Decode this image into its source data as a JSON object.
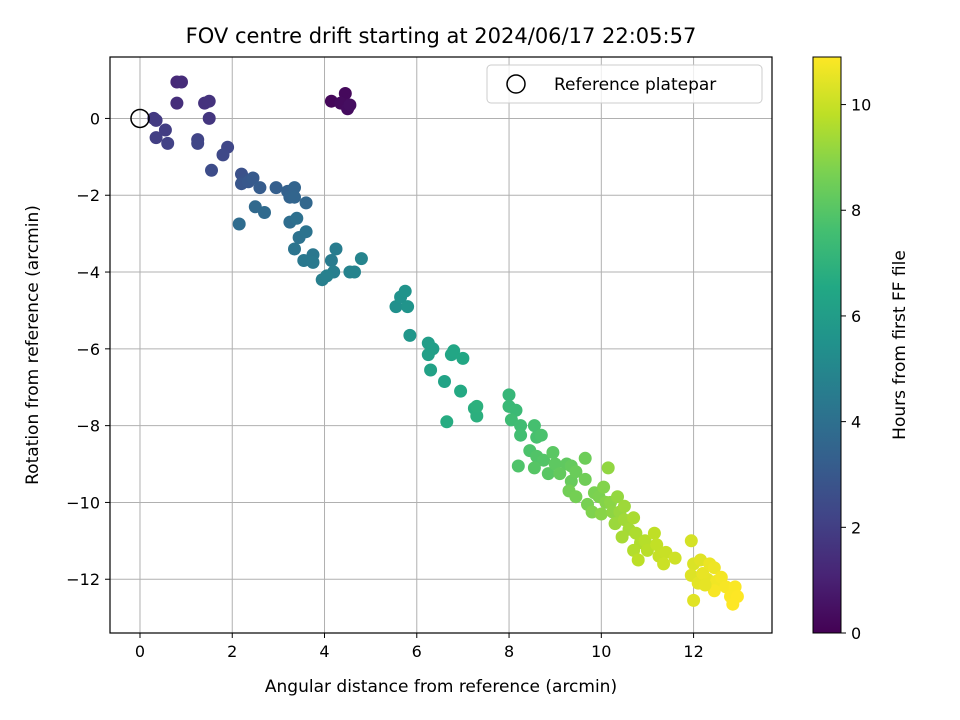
{
  "chart_data": {
    "type": "scatter",
    "title": "FOV centre drift starting at 2024/06/17 22:05:57",
    "xlabel": "Angular distance from reference (arcmin)",
    "ylabel": "Rotation from reference (arcmin)",
    "xlim": [
      -0.65,
      13.7
    ],
    "ylim": [
      -13.4,
      1.6
    ],
    "xticks": [
      0,
      2,
      4,
      6,
      8,
      10,
      12
    ],
    "yticks": [
      0,
      -2,
      -4,
      -6,
      -8,
      -10,
      -12
    ],
    "grid": true,
    "legend": {
      "placement": "top-right",
      "entries": [
        {
          "label": "Reference platepar",
          "marker": "open-circle"
        }
      ]
    },
    "reference_point": {
      "x": 0,
      "y": 0
    },
    "colorbar": {
      "label": "Hours from first FF file",
      "range": [
        0,
        10.9
      ],
      "ticks": [
        0,
        2,
        4,
        6,
        8,
        10
      ],
      "colormap": "viridis"
    },
    "columns": [
      "x",
      "y",
      "hours"
    ],
    "points": [
      [
        4.15,
        0.45,
        0.2
      ],
      [
        4.45,
        0.65,
        0.25
      ],
      [
        4.35,
        0.4,
        0.3
      ],
      [
        4.5,
        0.25,
        0.35
      ],
      [
        4.55,
        0.35,
        0.4
      ],
      [
        0.8,
        0.95,
        1.3
      ],
      [
        0.9,
        0.95,
        1.35
      ],
      [
        0.8,
        0.4,
        1.45
      ],
      [
        1.4,
        0.4,
        1.55
      ],
      [
        1.5,
        0.45,
        1.6
      ],
      [
        1.5,
        0.0,
        1.7
      ],
      [
        0.3,
        0.0,
        1.8
      ],
      [
        0.35,
        -0.05,
        1.85
      ],
      [
        0.55,
        -0.3,
        1.95
      ],
      [
        0.35,
        -0.5,
        2.0
      ],
      [
        0.6,
        -0.65,
        2.1
      ],
      [
        1.25,
        -0.55,
        2.2
      ],
      [
        1.25,
        -0.65,
        2.25
      ],
      [
        1.9,
        -0.75,
        2.3
      ],
      [
        1.8,
        -0.95,
        2.4
      ],
      [
        1.55,
        -1.35,
        2.5
      ],
      [
        2.2,
        -1.45,
        2.7
      ],
      [
        2.3,
        -1.6,
        2.8
      ],
      [
        2.2,
        -1.7,
        2.9
      ],
      [
        2.35,
        -1.65,
        3.0
      ],
      [
        2.45,
        -1.55,
        3.05
      ],
      [
        2.6,
        -1.8,
        3.15
      ],
      [
        2.95,
        -1.8,
        3.25
      ],
      [
        3.2,
        -1.9,
        3.35
      ],
      [
        3.25,
        -2.05,
        3.45
      ],
      [
        3.35,
        -1.8,
        3.5
      ],
      [
        3.35,
        -2.05,
        3.55
      ],
      [
        3.6,
        -2.2,
        3.6
      ],
      [
        2.5,
        -2.3,
        3.7
      ],
      [
        2.7,
        -2.45,
        3.75
      ],
      [
        2.15,
        -2.75,
        3.85
      ],
      [
        3.25,
        -2.7,
        3.9
      ],
      [
        3.4,
        -2.6,
        4.0
      ],
      [
        3.45,
        -3.1,
        4.1
      ],
      [
        3.6,
        -2.95,
        4.15
      ],
      [
        3.35,
        -3.4,
        4.2
      ],
      [
        3.75,
        -3.55,
        4.3
      ],
      [
        3.55,
        -3.7,
        4.35
      ],
      [
        3.75,
        -3.75,
        4.4
      ],
      [
        4.15,
        -3.7,
        4.5
      ],
      [
        4.25,
        -3.4,
        4.55
      ],
      [
        4.2,
        -4.0,
        4.6
      ],
      [
        3.95,
        -4.2,
        4.65
      ],
      [
        4.05,
        -4.1,
        4.7
      ],
      [
        4.55,
        -4.0,
        4.8
      ],
      [
        4.65,
        -4.0,
        4.85
      ],
      [
        4.8,
        -3.65,
        4.9
      ],
      [
        5.55,
        -4.9,
        5.4
      ],
      [
        5.65,
        -4.65,
        5.5
      ],
      [
        5.75,
        -4.5,
        5.55
      ],
      [
        5.8,
        -4.9,
        5.6
      ],
      [
        5.85,
        -5.65,
        5.7
      ],
      [
        6.25,
        -5.85,
        6.0
      ],
      [
        6.35,
        -6.0,
        6.05
      ],
      [
        6.25,
        -6.15,
        6.1
      ],
      [
        6.3,
        -6.55,
        6.2
      ],
      [
        6.6,
        -6.85,
        6.3
      ],
      [
        6.75,
        -6.15,
        6.4
      ],
      [
        6.8,
        -6.05,
        6.45
      ],
      [
        7.0,
        -6.25,
        6.5
      ],
      [
        6.95,
        -7.1,
        6.6
      ],
      [
        6.65,
        -7.9,
        6.7
      ],
      [
        7.25,
        -7.55,
        6.8
      ],
      [
        7.3,
        -7.75,
        6.85
      ],
      [
        7.3,
        -7.5,
        6.9
      ],
      [
        8.0,
        -7.2,
        7.2
      ],
      [
        8.0,
        -7.5,
        7.3
      ],
      [
        8.15,
        -7.6,
        7.35
      ],
      [
        8.05,
        -7.85,
        7.45
      ],
      [
        8.25,
        -8.0,
        7.5
      ],
      [
        8.25,
        -8.25,
        7.55
      ],
      [
        8.55,
        -8.0,
        7.65
      ],
      [
        8.6,
        -8.3,
        7.7
      ],
      [
        8.7,
        -8.25,
        7.75
      ],
      [
        8.45,
        -8.65,
        7.8
      ],
      [
        8.2,
        -9.05,
        7.85
      ],
      [
        8.6,
        -8.8,
        7.9
      ],
      [
        8.75,
        -8.9,
        7.95
      ],
      [
        8.55,
        -9.1,
        8.0
      ],
      [
        8.85,
        -9.25,
        8.05
      ],
      [
        8.95,
        -8.7,
        8.1
      ],
      [
        9.0,
        -9.0,
        8.15
      ],
      [
        9.25,
        -9.0,
        8.2
      ],
      [
        9.1,
        -9.25,
        8.25
      ],
      [
        9.35,
        -9.05,
        8.3
      ],
      [
        9.35,
        -9.45,
        8.35
      ],
      [
        9.45,
        -9.2,
        8.4
      ],
      [
        9.65,
        -8.85,
        8.45
      ],
      [
        9.65,
        -9.4,
        8.5
      ],
      [
        9.3,
        -9.7,
        8.55
      ],
      [
        9.45,
        -9.85,
        8.6
      ],
      [
        9.7,
        -10.05,
        8.65
      ],
      [
        9.85,
        -9.75,
        8.7
      ],
      [
        9.95,
        -9.85,
        8.75
      ],
      [
        9.8,
        -10.25,
        8.8
      ],
      [
        10.05,
        -9.6,
        8.85
      ],
      [
        10.1,
        -10.0,
        8.9
      ],
      [
        10.0,
        -10.3,
        8.95
      ],
      [
        10.2,
        -10.0,
        9.0
      ],
      [
        10.25,
        -10.25,
        9.05
      ],
      [
        10.15,
        -9.1,
        9.1
      ],
      [
        10.35,
        -9.85,
        9.15
      ],
      [
        10.4,
        -10.25,
        9.2
      ],
      [
        10.3,
        -10.55,
        9.25
      ],
      [
        10.5,
        -10.1,
        9.3
      ],
      [
        10.5,
        -10.45,
        9.35
      ],
      [
        10.6,
        -10.7,
        9.4
      ],
      [
        10.45,
        -10.9,
        9.45
      ],
      [
        10.7,
        -10.4,
        9.5
      ],
      [
        10.75,
        -10.8,
        9.55
      ],
      [
        10.85,
        -11.05,
        9.6
      ],
      [
        10.7,
        -11.25,
        9.65
      ],
      [
        10.95,
        -11.0,
        9.7
      ],
      [
        11.0,
        -11.25,
        9.75
      ],
      [
        10.8,
        -11.5,
        9.8
      ],
      [
        11.15,
        -10.8,
        9.85
      ],
      [
        11.2,
        -11.1,
        9.9
      ],
      [
        11.25,
        -11.4,
        9.95
      ],
      [
        11.4,
        -11.3,
        10.0
      ],
      [
        11.35,
        -11.6,
        10.05
      ],
      [
        11.6,
        -11.45,
        10.1
      ],
      [
        11.95,
        -11.0,
        10.2
      ],
      [
        12.0,
        -11.6,
        10.3
      ],
      [
        11.95,
        -11.9,
        10.35
      ],
      [
        12.15,
        -11.5,
        10.4
      ],
      [
        12.1,
        -12.1,
        10.45
      ],
      [
        12.3,
        -12.0,
        10.5
      ],
      [
        12.2,
        -11.85,
        10.55
      ],
      [
        12.35,
        -11.6,
        10.6
      ],
      [
        12.45,
        -11.7,
        10.65
      ],
      [
        12.5,
        -12.05,
        10.7
      ],
      [
        12.6,
        -11.95,
        10.75
      ],
      [
        12.45,
        -12.3,
        10.8
      ],
      [
        12.7,
        -12.2,
        10.8
      ],
      [
        12.9,
        -12.2,
        10.85
      ],
      [
        12.8,
        -12.45,
        10.85
      ],
      [
        12.95,
        -12.45,
        10.9
      ],
      [
        12.85,
        -12.65,
        10.9
      ],
      [
        12.0,
        -12.55,
        10.4
      ],
      [
        12.25,
        -12.15,
        10.5
      ]
    ]
  }
}
